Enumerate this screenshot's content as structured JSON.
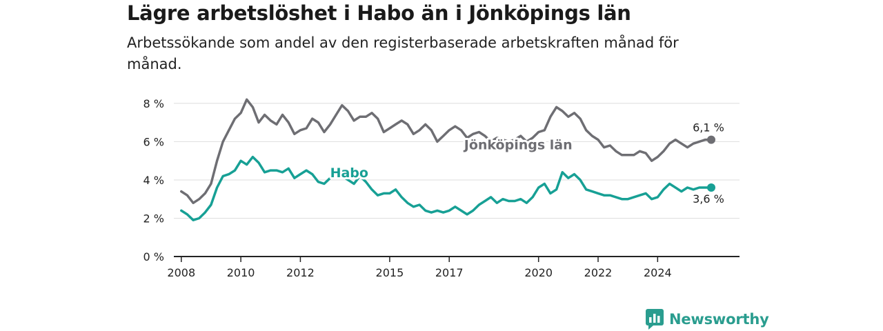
{
  "title": "Lägre arbetslöshet i Habo än i Jönköpings län",
  "subtitle": "Arbetssökande som andel av den registerbaserade arbetskraften månad för månad.",
  "brand": {
    "name": "Newsworthy",
    "icon": "bar-chart-logo-icon",
    "color": "#2a9d8f"
  },
  "colors": {
    "lan": "#6e6e73",
    "habo": "#17a095",
    "grid": "#dedede",
    "axis": "#222222"
  },
  "chart_data": {
    "type": "line",
    "title": "Lägre arbetslöshet i Habo än i Jönköpings län",
    "subtitle": "Arbetssökande som andel av den registerbaserade arbetskraften månad för månad.",
    "xlabel": "",
    "ylabel": "",
    "xlim": [
      2007.75,
      2026.75
    ],
    "ylim": [
      0,
      8.5
    ],
    "x_ticks": [
      2008,
      2010,
      2012,
      2015,
      2017,
      2020,
      2022,
      2024
    ],
    "x_tick_labels": [
      "2008",
      "2010",
      "2012",
      "2015",
      "2017",
      "2020",
      "2022",
      "2024"
    ],
    "y_ticks": [
      0,
      2,
      4,
      6,
      8
    ],
    "y_tick_labels": [
      "0 %",
      "2 %",
      "4 %",
      "6 %",
      "8 %"
    ],
    "grid": true,
    "legend": "inline labels",
    "series": [
      {
        "name": "Jönköpings län",
        "color": "#6e6e73",
        "end_label": "6,1 %",
        "points": [
          [
            2008.0,
            3.4
          ],
          [
            2008.2,
            3.2
          ],
          [
            2008.4,
            2.8
          ],
          [
            2008.6,
            3.0
          ],
          [
            2008.8,
            3.3
          ],
          [
            2009.0,
            3.8
          ],
          [
            2009.2,
            5.0
          ],
          [
            2009.4,
            6.0
          ],
          [
            2009.6,
            6.6
          ],
          [
            2009.8,
            7.2
          ],
          [
            2010.0,
            7.5
          ],
          [
            2010.2,
            8.2
          ],
          [
            2010.4,
            7.8
          ],
          [
            2010.6,
            7.0
          ],
          [
            2010.8,
            7.4
          ],
          [
            2011.0,
            7.1
          ],
          [
            2011.2,
            6.9
          ],
          [
            2011.4,
            7.4
          ],
          [
            2011.6,
            7.0
          ],
          [
            2011.8,
            6.4
          ],
          [
            2012.0,
            6.6
          ],
          [
            2012.2,
            6.7
          ],
          [
            2012.4,
            7.2
          ],
          [
            2012.6,
            7.0
          ],
          [
            2012.8,
            6.5
          ],
          [
            2013.0,
            6.9
          ],
          [
            2013.2,
            7.4
          ],
          [
            2013.4,
            7.9
          ],
          [
            2013.6,
            7.6
          ],
          [
            2013.8,
            7.1
          ],
          [
            2014.0,
            7.3
          ],
          [
            2014.2,
            7.3
          ],
          [
            2014.4,
            7.5
          ],
          [
            2014.6,
            7.2
          ],
          [
            2014.8,
            6.5
          ],
          [
            2015.0,
            6.7
          ],
          [
            2015.2,
            6.9
          ],
          [
            2015.4,
            7.1
          ],
          [
            2015.6,
            6.9
          ],
          [
            2015.8,
            6.4
          ],
          [
            2016.0,
            6.6
          ],
          [
            2016.2,
            6.9
          ],
          [
            2016.4,
            6.6
          ],
          [
            2016.6,
            6.0
          ],
          [
            2016.8,
            6.3
          ],
          [
            2017.0,
            6.6
          ],
          [
            2017.2,
            6.8
          ],
          [
            2017.4,
            6.6
          ],
          [
            2017.6,
            6.2
          ],
          [
            2017.8,
            6.4
          ],
          [
            2018.0,
            6.5
          ],
          [
            2018.2,
            6.3
          ],
          [
            2018.4,
            6.0
          ],
          [
            2018.6,
            6.2
          ],
          [
            2018.8,
            6.1
          ],
          [
            2019.0,
            6.0
          ],
          [
            2019.2,
            6.1
          ],
          [
            2019.4,
            6.3
          ],
          [
            2019.6,
            6.0
          ],
          [
            2019.8,
            6.2
          ],
          [
            2020.0,
            6.5
          ],
          [
            2020.2,
            6.6
          ],
          [
            2020.4,
            7.3
          ],
          [
            2020.6,
            7.8
          ],
          [
            2020.8,
            7.6
          ],
          [
            2021.0,
            7.3
          ],
          [
            2021.2,
            7.5
          ],
          [
            2021.4,
            7.2
          ],
          [
            2021.6,
            6.6
          ],
          [
            2021.8,
            6.3
          ],
          [
            2022.0,
            6.1
          ],
          [
            2022.2,
            5.7
          ],
          [
            2022.4,
            5.8
          ],
          [
            2022.6,
            5.5
          ],
          [
            2022.8,
            5.3
          ],
          [
            2023.0,
            5.3
          ],
          [
            2023.2,
            5.3
          ],
          [
            2023.4,
            5.5
          ],
          [
            2023.6,
            5.4
          ],
          [
            2023.8,
            5.0
          ],
          [
            2024.0,
            5.2
          ],
          [
            2024.2,
            5.5
          ],
          [
            2024.4,
            5.9
          ],
          [
            2024.6,
            6.1
          ],
          [
            2024.8,
            5.9
          ],
          [
            2025.0,
            5.7
          ],
          [
            2025.2,
            5.9
          ],
          [
            2025.4,
            6.0
          ],
          [
            2025.6,
            6.1
          ],
          [
            2025.8,
            6.1
          ]
        ]
      },
      {
        "name": "Habo",
        "color": "#17a095",
        "end_label": "3,6 %",
        "points": [
          [
            2008.0,
            2.4
          ],
          [
            2008.2,
            2.2
          ],
          [
            2008.4,
            1.9
          ],
          [
            2008.6,
            2.0
          ],
          [
            2008.8,
            2.3
          ],
          [
            2009.0,
            2.7
          ],
          [
            2009.2,
            3.6
          ],
          [
            2009.4,
            4.2
          ],
          [
            2009.6,
            4.3
          ],
          [
            2009.8,
            4.5
          ],
          [
            2010.0,
            5.0
          ],
          [
            2010.2,
            4.8
          ],
          [
            2010.4,
            5.2
          ],
          [
            2010.6,
            4.9
          ],
          [
            2010.8,
            4.4
          ],
          [
            2011.0,
            4.5
          ],
          [
            2011.2,
            4.5
          ],
          [
            2011.4,
            4.4
          ],
          [
            2011.6,
            4.6
          ],
          [
            2011.8,
            4.1
          ],
          [
            2012.0,
            4.3
          ],
          [
            2012.2,
            4.5
          ],
          [
            2012.4,
            4.3
          ],
          [
            2012.6,
            3.9
          ],
          [
            2012.8,
            3.8
          ],
          [
            2013.0,
            4.1
          ],
          [
            2013.2,
            4.4
          ],
          [
            2013.4,
            4.2
          ],
          [
            2013.6,
            4.0
          ],
          [
            2013.8,
            3.8
          ],
          [
            2014.0,
            4.2
          ],
          [
            2014.2,
            3.9
          ],
          [
            2014.4,
            3.5
          ],
          [
            2014.6,
            3.2
          ],
          [
            2014.8,
            3.3
          ],
          [
            2015.0,
            3.3
          ],
          [
            2015.2,
            3.5
          ],
          [
            2015.4,
            3.1
          ],
          [
            2015.6,
            2.8
          ],
          [
            2015.8,
            2.6
          ],
          [
            2016.0,
            2.7
          ],
          [
            2016.2,
            2.4
          ],
          [
            2016.4,
            2.3
          ],
          [
            2016.6,
            2.4
          ],
          [
            2016.8,
            2.3
          ],
          [
            2017.0,
            2.4
          ],
          [
            2017.2,
            2.6
          ],
          [
            2017.4,
            2.4
          ],
          [
            2017.6,
            2.2
          ],
          [
            2017.8,
            2.4
          ],
          [
            2018.0,
            2.7
          ],
          [
            2018.2,
            2.9
          ],
          [
            2018.4,
            3.1
          ],
          [
            2018.6,
            2.8
          ],
          [
            2018.8,
            3.0
          ],
          [
            2019.0,
            2.9
          ],
          [
            2019.2,
            2.9
          ],
          [
            2019.4,
            3.0
          ],
          [
            2019.6,
            2.8
          ],
          [
            2019.8,
            3.1
          ],
          [
            2020.0,
            3.6
          ],
          [
            2020.2,
            3.8
          ],
          [
            2020.4,
            3.3
          ],
          [
            2020.6,
            3.5
          ],
          [
            2020.8,
            4.4
          ],
          [
            2021.0,
            4.1
          ],
          [
            2021.2,
            4.3
          ],
          [
            2021.4,
            4.0
          ],
          [
            2021.6,
            3.5
          ],
          [
            2021.8,
            3.4
          ],
          [
            2022.0,
            3.3
          ],
          [
            2022.2,
            3.2
          ],
          [
            2022.4,
            3.2
          ],
          [
            2022.6,
            3.1
          ],
          [
            2022.8,
            3.0
          ],
          [
            2023.0,
            3.0
          ],
          [
            2023.2,
            3.1
          ],
          [
            2023.4,
            3.2
          ],
          [
            2023.6,
            3.3
          ],
          [
            2023.8,
            3.0
          ],
          [
            2024.0,
            3.1
          ],
          [
            2024.2,
            3.5
          ],
          [
            2024.4,
            3.8
          ],
          [
            2024.6,
            3.6
          ],
          [
            2024.8,
            3.4
          ],
          [
            2025.0,
            3.6
          ],
          [
            2025.2,
            3.5
          ],
          [
            2025.4,
            3.6
          ],
          [
            2025.6,
            3.6
          ],
          [
            2025.8,
            3.6
          ]
        ]
      }
    ]
  }
}
